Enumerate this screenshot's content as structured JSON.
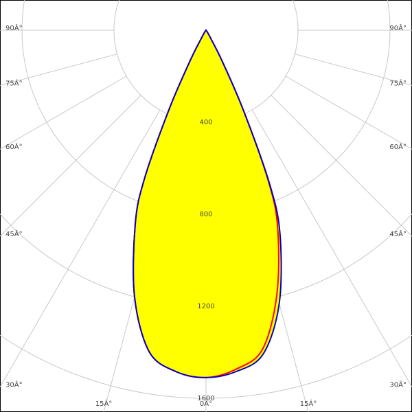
{
  "chart_data": {
    "type": "polar",
    "x": [
      -40,
      -35,
      -30,
      -27.5,
      -25,
      -22.5,
      -20,
      -15,
      -10,
      -5,
      0,
      5,
      10,
      15,
      20,
      22.5,
      25,
      27.5,
      30,
      35,
      40
    ],
    "series": [
      {
        "color": "#ff0000",
        "values": [
          0,
          10,
          40,
          150,
          380,
          700,
          900,
          1200,
          1420,
          1490,
          1510,
          1480,
          1410,
          1190,
          910,
          705,
          385,
          155,
          42,
          10,
          0
        ]
      },
      {
        "color": "#0000cc",
        "values": [
          0,
          10,
          40,
          150,
          380,
          700,
          900,
          1200,
          1420,
          1490,
          1510,
          1490,
          1430,
          1230,
          940,
          720,
          390,
          160,
          45,
          10,
          0
        ]
      }
    ],
    "fill": "#ffff00",
    "rlim": [
      0,
      1600
    ],
    "rticks": [
      400,
      800,
      1200,
      1600
    ],
    "angle_ticks": [
      {
        "value": 0,
        "label": "0Â°"
      },
      {
        "value": 15,
        "label": "15Â°"
      },
      {
        "value": 30,
        "label": "30Â°"
      },
      {
        "value": 45,
        "label": "45Â°"
      },
      {
        "value": 60,
        "label": "60Â°"
      },
      {
        "value": 75,
        "label": "75Â°"
      },
      {
        "value": 90,
        "label": "90Â°"
      }
    ],
    "grid": true
  }
}
